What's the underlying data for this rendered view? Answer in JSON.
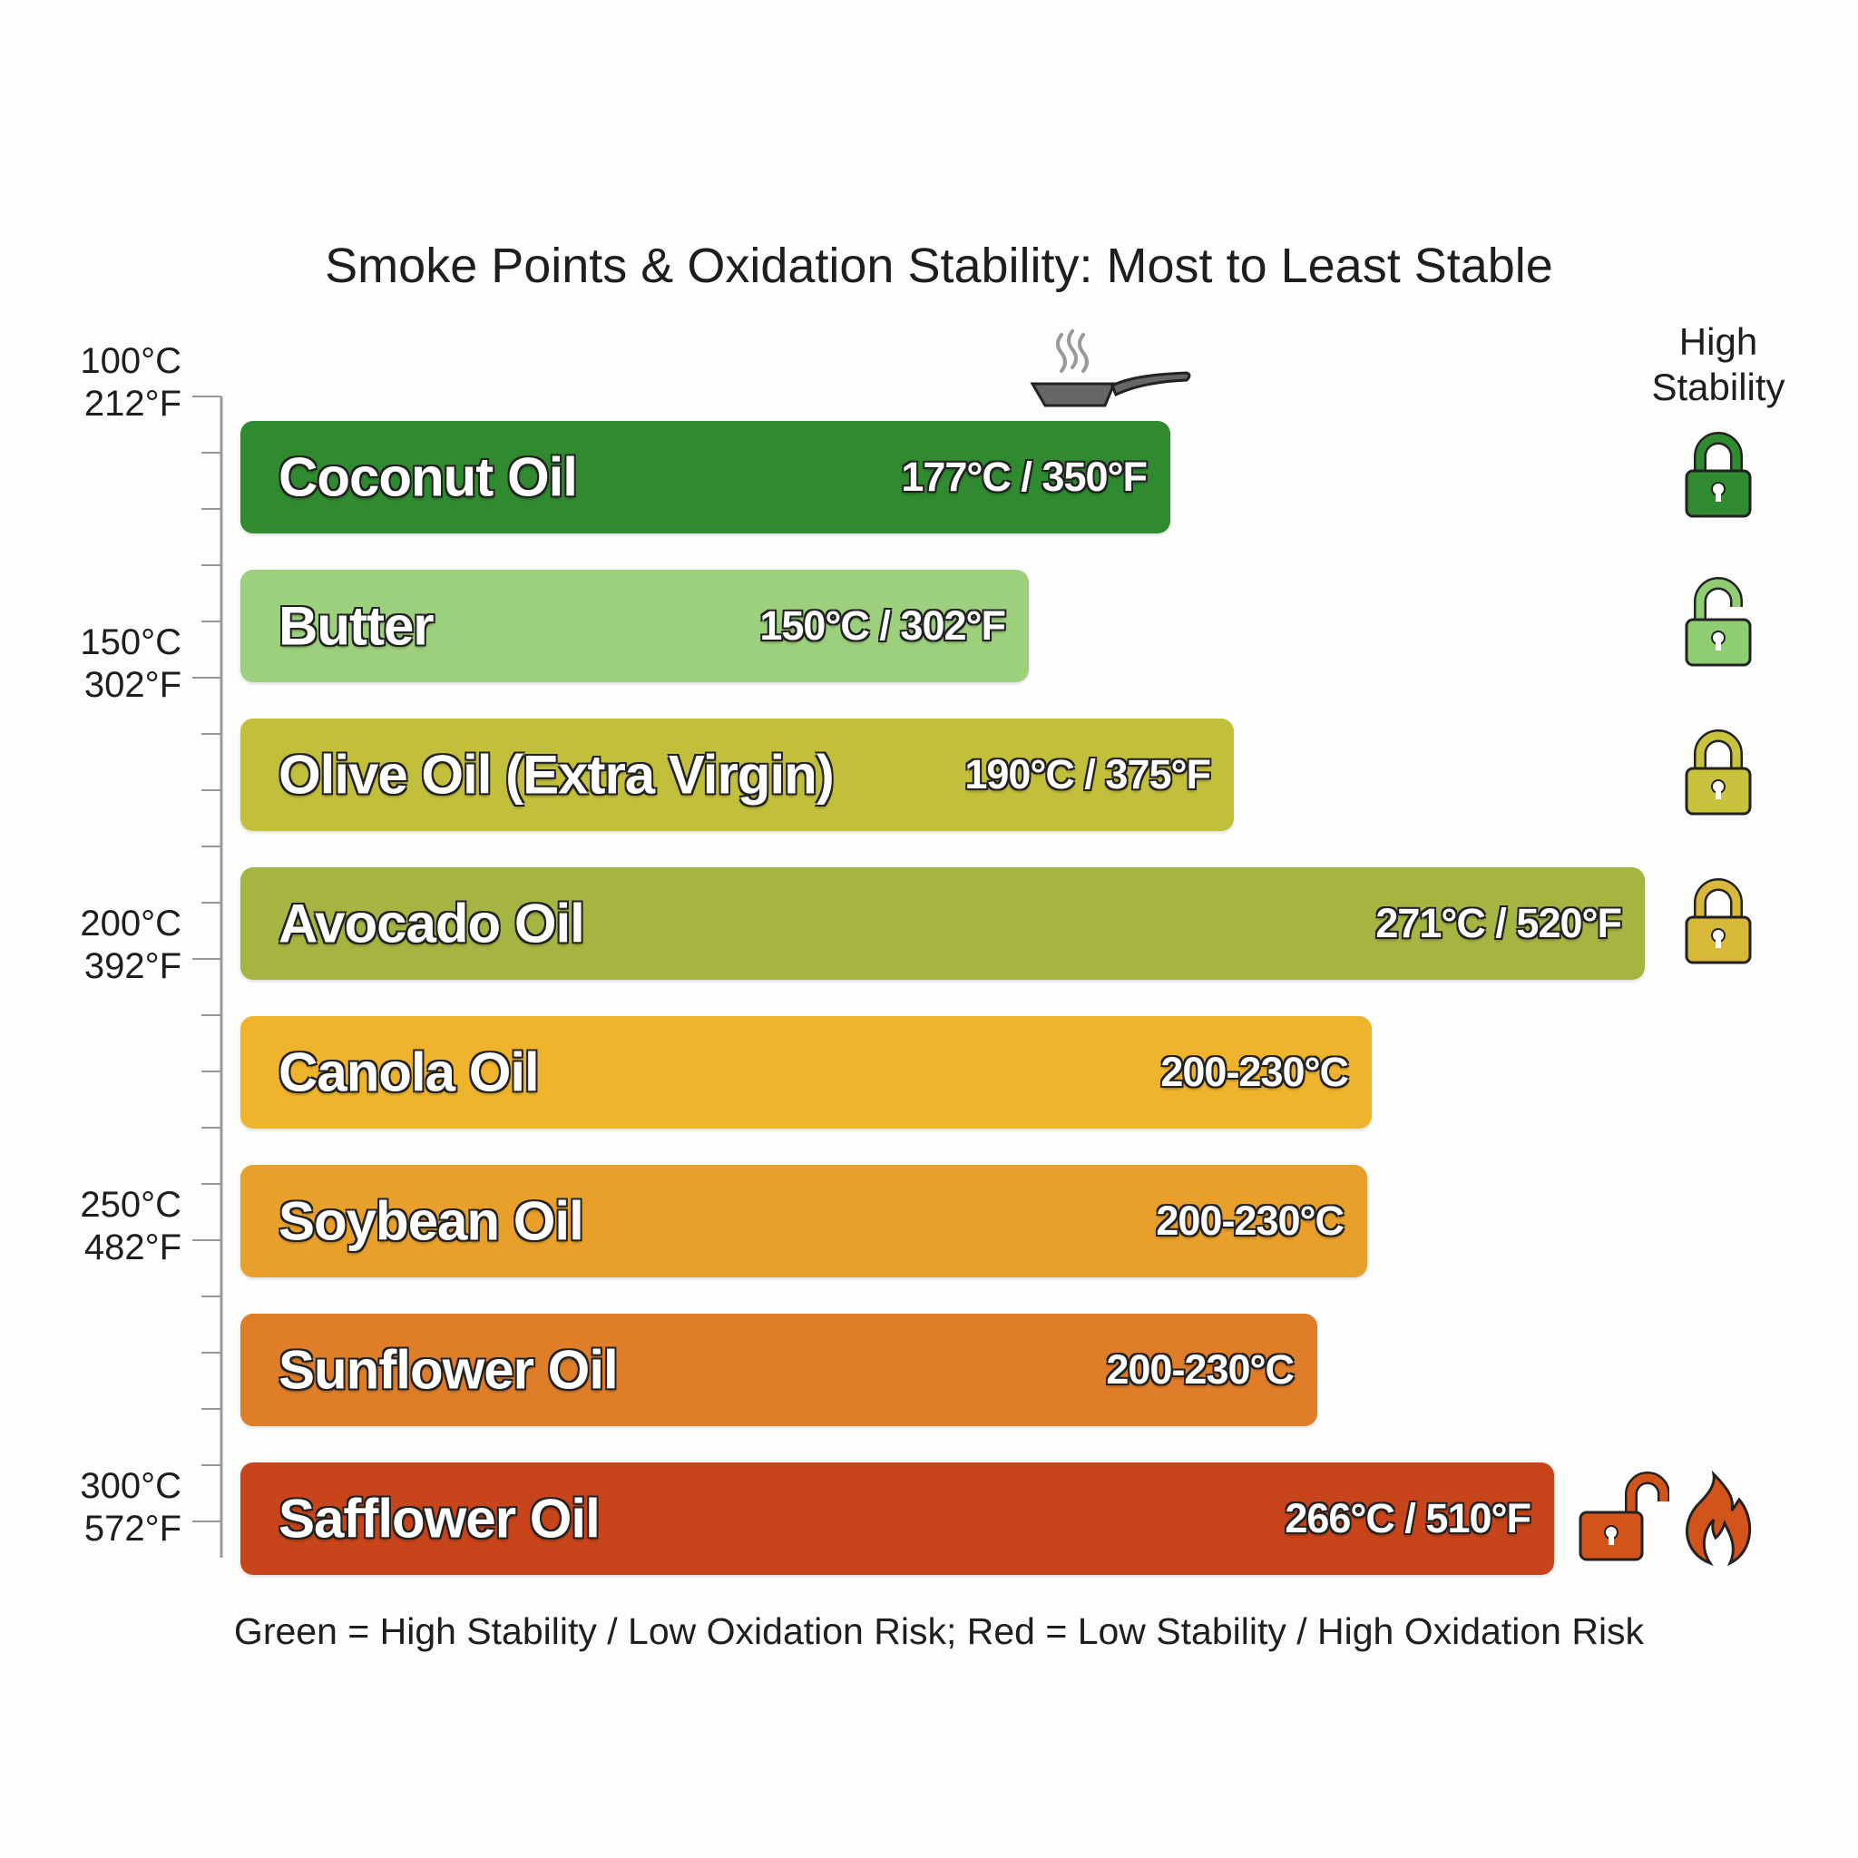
{
  "chart_data": {
    "type": "bar",
    "orientation": "horizontal",
    "title": "Smoke Points & Oxidation Stability: Most to Least Stable",
    "categories": [
      "Coconut Oil",
      "Butter",
      "Olive Oil (Extra Virgin)",
      "Avocado Oil",
      "Canola Oil",
      "Soybean Oil",
      "Sunflower Oil",
      "Safflower Oil"
    ],
    "value_labels": [
      "177°C / 350°F",
      "150°C / 302°F",
      "190°C / 375°F",
      "271°C / 520°F",
      "200-230°C",
      "200-230°C",
      "200-230°C",
      "266°C / 510°F"
    ],
    "smoke_point_c": [
      177,
      150,
      190,
      271,
      215,
      215,
      215,
      266
    ],
    "colors": [
      "#2f8a30",
      "#9dd07c",
      "#c2bf3b",
      "#a6b442",
      "#efb42c",
      "#e8a02b",
      "#df7d29",
      "#c8441a"
    ],
    "stability_icons": [
      {
        "icon": "lock-closed-icon",
        "color": "#2f8a30"
      },
      {
        "icon": "lock-open-icon",
        "color": "#8fcd72"
      },
      {
        "icon": "lock-closed-icon",
        "color": "#c8c23c"
      },
      {
        "icon": "lock-closed-icon",
        "color": "#d8b838"
      },
      null,
      null,
      null,
      {
        "icon": "lock-open-icon",
        "color": "#d2541a",
        "extra": "flame-icon"
      }
    ],
    "axis": {
      "ticks": [
        {
          "c": 100,
          "label_c": "100°C",
          "label_f": "212°F"
        },
        {
          "c": 150,
          "label_c": "150°C",
          "label_f": "302°F"
        },
        {
          "c": 200,
          "label_c": "200°C",
          "label_f": "392°F"
        },
        {
          "c": 250,
          "label_c": "250°C",
          "label_f": "482°F"
        },
        {
          "c": 300,
          "label_c": "300°C",
          "label_f": "572°F"
        }
      ],
      "range_c": [
        100,
        300
      ],
      "minor_step_c": 10
    },
    "stability_label": "High Stability",
    "footer": "Green = High Stability / Low Oxidation Risk; Red = Low Stability / High Oxidation Risk",
    "decoration": "frying-pan-icon"
  }
}
